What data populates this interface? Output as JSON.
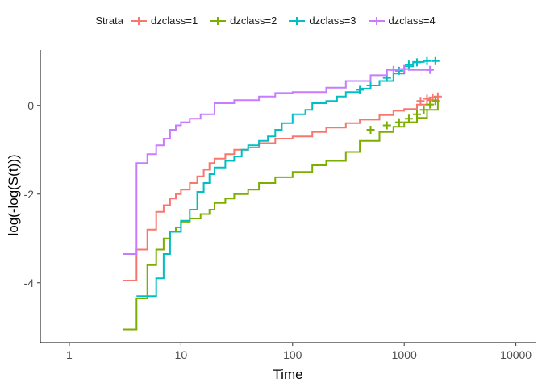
{
  "chart_data": {
    "type": "line",
    "xlabel": "Time",
    "ylabel": "log(-log(S(t)))",
    "x_scale": "log10",
    "xlim": [
      0.55,
      15000
    ],
    "ylim": [
      -5.35,
      1.25
    ],
    "x_ticks": [
      1,
      10,
      100,
      1000,
      10000
    ],
    "x_tick_labels": [
      "1",
      "10",
      "100",
      "1000",
      "10000"
    ],
    "y_ticks": [
      -4,
      -2,
      0
    ],
    "y_tick_labels": [
      "-4",
      "-2",
      "0"
    ],
    "grid": false,
    "legend_title": "Strata",
    "legend_position": "top",
    "series": [
      {
        "name": "dzclass=1",
        "color": "#F8766D",
        "x": [
          3,
          4,
          5,
          6,
          7,
          8,
          9,
          10,
          12,
          14,
          16,
          18,
          20,
          25,
          30,
          40,
          50,
          70,
          100,
          150,
          200,
          300,
          400,
          600,
          800,
          1000,
          1300,
          1600,
          2000
        ],
        "y": [
          -3.95,
          -3.25,
          -2.8,
          -2.4,
          -2.25,
          -2.1,
          -2.0,
          -1.9,
          -1.75,
          -1.6,
          -1.45,
          -1.3,
          -1.2,
          -1.1,
          -1.0,
          -0.95,
          -0.85,
          -0.75,
          -0.7,
          -0.6,
          -0.5,
          -0.4,
          -0.32,
          -0.22,
          -0.12,
          -0.08,
          0.02,
          0.12,
          0.18
        ],
        "censor_x": [
          1400,
          1600,
          1800,
          2000
        ],
        "censor_y": [
          0.1,
          0.15,
          0.18,
          0.2
        ]
      },
      {
        "name": "dzclass=2",
        "color": "#7CAE00",
        "x": [
          3,
          4,
          5,
          6,
          7,
          8,
          9,
          10,
          12,
          15,
          18,
          20,
          25,
          30,
          40,
          50,
          70,
          100,
          150,
          200,
          300,
          400,
          600,
          800,
          1000,
          1300,
          1600,
          2000
        ],
        "y": [
          -5.05,
          -4.35,
          -3.6,
          -3.25,
          -3.0,
          -2.85,
          -2.75,
          -2.62,
          -2.55,
          -2.45,
          -2.35,
          -2.2,
          -2.1,
          -2.0,
          -1.9,
          -1.75,
          -1.62,
          -1.5,
          -1.35,
          -1.25,
          -1.05,
          -0.8,
          -0.6,
          -0.48,
          -0.38,
          -0.28,
          -0.1,
          0.1
        ],
        "censor_x": [
          500,
          700,
          900,
          1100,
          1300,
          1500,
          1700,
          1900
        ],
        "censor_y": [
          -0.55,
          -0.45,
          -0.38,
          -0.3,
          -0.2,
          -0.1,
          0.02,
          0.1
        ]
      },
      {
        "name": "dzclass=3",
        "color": "#00BFC4",
        "x": [
          4,
          6,
          7,
          8,
          10,
          12,
          14,
          16,
          18,
          20,
          25,
          30,
          35,
          40,
          50,
          60,
          70,
          80,
          100,
          130,
          150,
          200,
          250,
          300,
          400,
          500,
          600,
          800,
          1000,
          1200,
          1500
        ],
        "y": [
          -4.3,
          -3.9,
          -3.35,
          -2.85,
          -2.6,
          -2.35,
          -1.95,
          -1.75,
          -1.55,
          -1.4,
          -1.25,
          -1.15,
          -1.0,
          -0.9,
          -0.8,
          -0.7,
          -0.55,
          -0.4,
          -0.2,
          -0.1,
          0.05,
          0.1,
          0.2,
          0.3,
          0.38,
          0.45,
          0.55,
          0.72,
          0.88,
          0.98,
          1.0
        ],
        "censor_x": [
          400,
          500,
          700,
          900,
          1100,
          1300,
          1600,
          1900
        ],
        "censor_y": [
          0.35,
          0.45,
          0.62,
          0.78,
          0.92,
          0.97,
          1.0,
          1.0
        ]
      },
      {
        "name": "dzclass=4",
        "color": "#C77CFF",
        "x": [
          3,
          4,
          5,
          6,
          7,
          8,
          9,
          10,
          12,
          15,
          20,
          30,
          50,
          70,
          100,
          200,
          300,
          500,
          700,
          900,
          1100,
          1800
        ],
        "y": [
          -3.35,
          -1.3,
          -1.1,
          -0.9,
          -0.75,
          -0.55,
          -0.45,
          -0.38,
          -0.3,
          -0.2,
          0.05,
          0.12,
          0.2,
          0.28,
          0.3,
          0.4,
          0.55,
          0.68,
          0.8,
          0.82,
          0.8,
          0.8
        ],
        "censor_x": [
          800,
          1000,
          1700
        ],
        "censor_y": [
          0.8,
          0.82,
          0.8
        ]
      }
    ]
  }
}
